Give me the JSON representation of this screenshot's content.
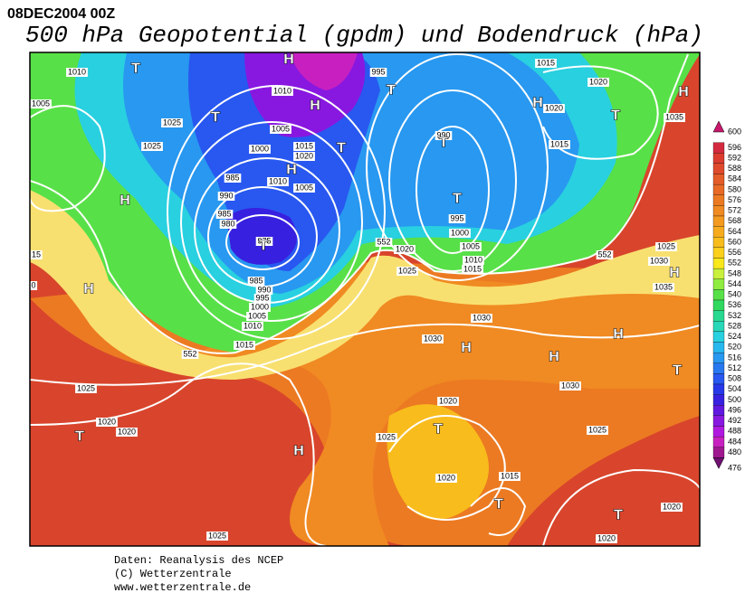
{
  "header": {
    "date": "08DEC2004 00Z",
    "title": "500 hPa Geopotential (gpdm) und Bodendruck (hPa)"
  },
  "map": {
    "pressure_labels": [
      "1010",
      "1005",
      "1025",
      "1025",
      "1000",
      "1005",
      "1010",
      "1015",
      "1020",
      "985",
      "990",
      "1010",
      "1005",
      "985",
      "980",
      "975",
      "985",
      "990",
      "995",
      "1000",
      "1005",
      "1010",
      "1015",
      "995",
      "990",
      "995",
      "1000",
      "1005",
      "1010",
      "1015",
      "1020",
      "1025",
      "1030",
      "1030",
      "1015",
      "1020",
      "1020",
      "1015",
      "1035",
      "1025",
      "1030",
      "1035",
      "1030",
      "1025",
      "1020",
      "1025",
      "1020",
      "1015",
      "1020",
      "1020",
      "1025",
      "1025",
      "1020",
      "1020",
      "15",
      "0"
    ],
    "height_labels": [
      "552",
      "552",
      "552"
    ],
    "centers": [
      "H",
      "T",
      "T",
      "H",
      "H",
      "T",
      "T",
      "H",
      "T",
      "H",
      "T",
      "H",
      "T",
      "T",
      "H",
      "H",
      "H",
      "H",
      "H",
      "T",
      "T",
      "T",
      "H",
      "T",
      "T"
    ]
  },
  "colorbar": {
    "levels": [
      600,
      596,
      592,
      588,
      584,
      580,
      576,
      572,
      568,
      564,
      560,
      556,
      552,
      548,
      544,
      540,
      536,
      532,
      528,
      524,
      520,
      516,
      512,
      508,
      504,
      500,
      496,
      492,
      488,
      484,
      480,
      476
    ],
    "colors": [
      "#c8186c",
      "#d42a40",
      "#dc3c30",
      "#e04a2c",
      "#e45c28",
      "#e86a24",
      "#ec7a22",
      "#f08a22",
      "#f49a20",
      "#f6aa1e",
      "#f8bc1c",
      "#fad01c",
      "#f8e81c",
      "#c8f03c",
      "#90ec40",
      "#58e048",
      "#30d860",
      "#28d890",
      "#28d8b8",
      "#28d0e0",
      "#28b8f0",
      "#2898f0",
      "#2878f0",
      "#2858f0",
      "#2838e8",
      "#3820e0",
      "#6018e0",
      "#8818e0",
      "#b018e0",
      "#c820c0",
      "#a01890",
      "#701070"
    ]
  },
  "footer": [
    "Daten: Reanalysis des NCEP",
    "(C) Wetterzentrale",
    "www.wetterzentrale.de"
  ]
}
